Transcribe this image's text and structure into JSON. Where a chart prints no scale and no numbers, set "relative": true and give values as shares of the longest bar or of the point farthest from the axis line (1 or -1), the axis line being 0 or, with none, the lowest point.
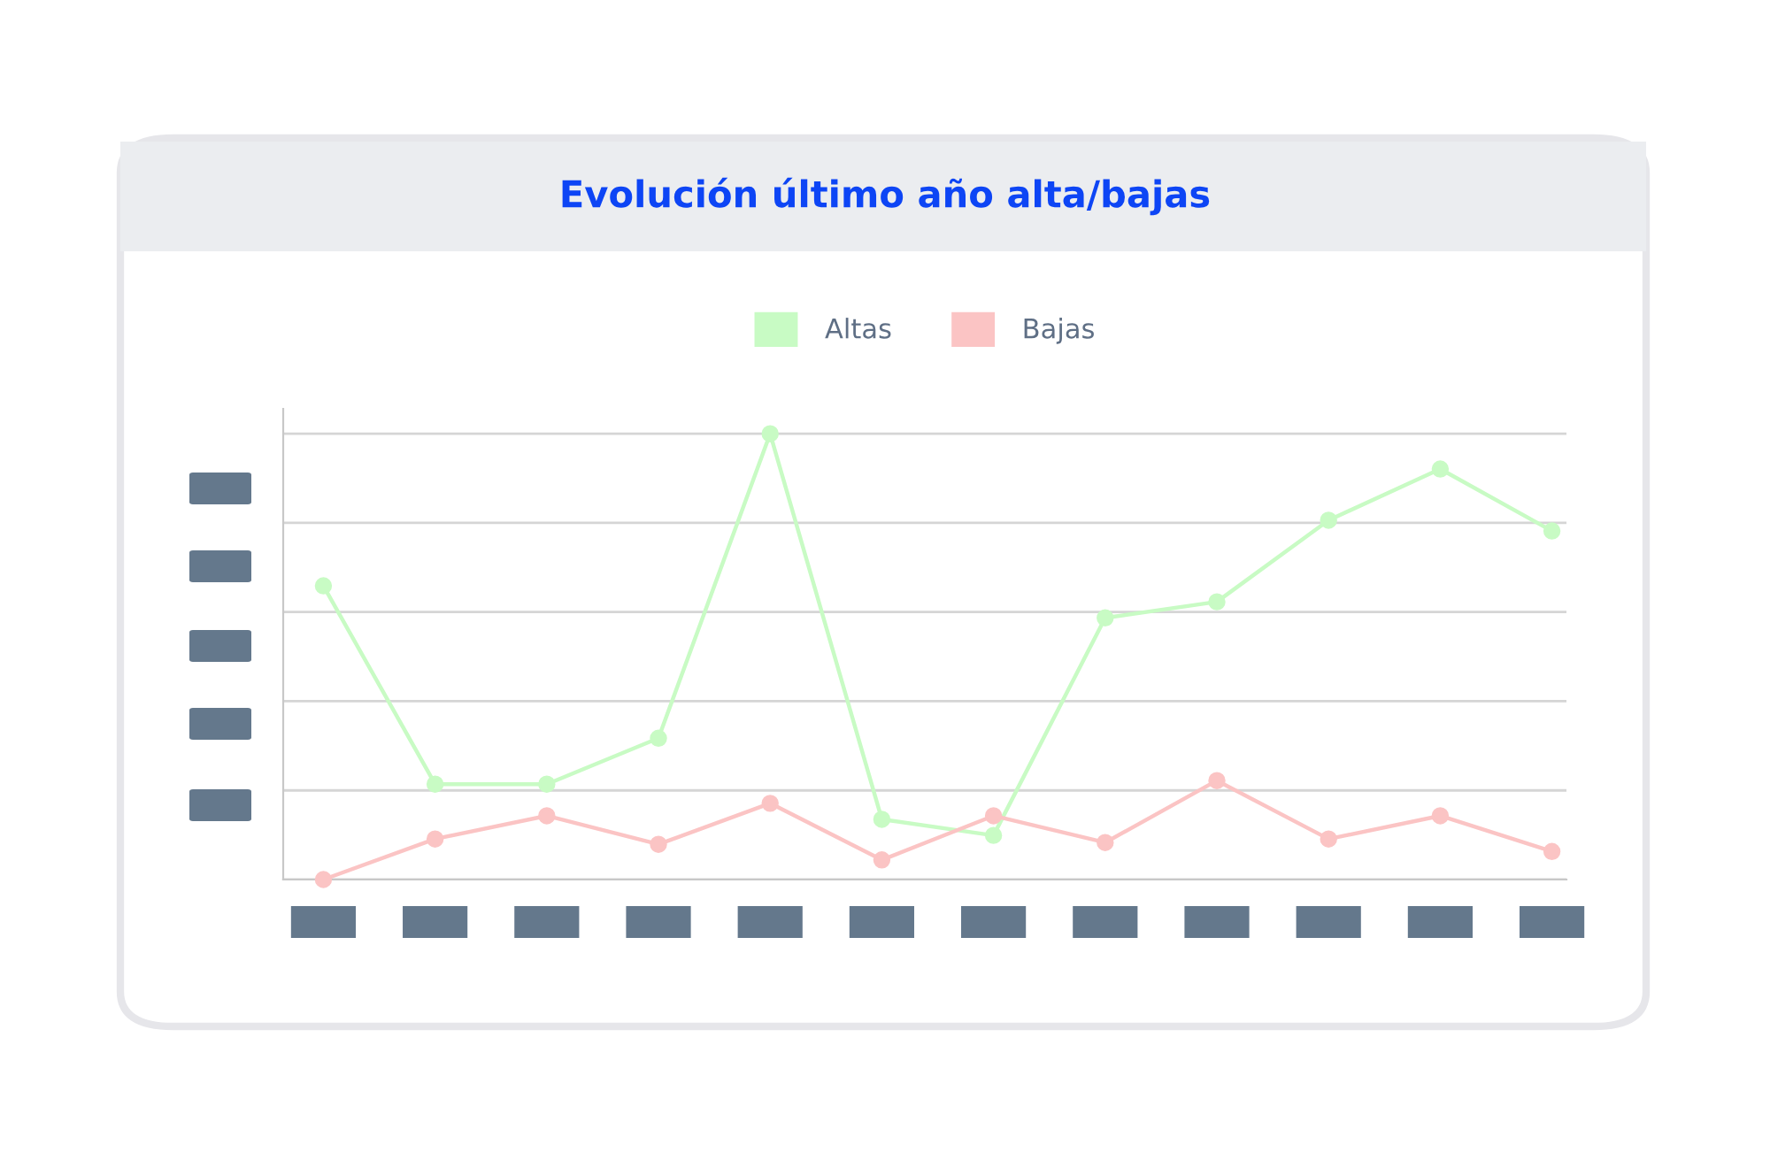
{
  "chart_data": {
    "type": "line",
    "title": "Evolución último año alta/bajas",
    "relative": true,
    "categories": [
      null,
      null,
      null,
      null,
      null,
      null,
      null,
      null,
      null,
      null,
      null,
      null
    ],
    "series": [
      {
        "name": "Altas",
        "color": "#c8fbc4",
        "values": [
          0.659,
          0.214,
          0.214,
          0.317,
          1,
          0.135,
          0.099,
          0.587,
          0.623,
          0.806,
          0.921,
          0.782
        ]
      },
      {
        "name": "Bajas",
        "color": "#fbc4c4",
        "values": [
          0,
          0.091,
          0.143,
          0.079,
          0.171,
          0.044,
          0.143,
          0.083,
          0.222,
          0.091,
          0.143,
          0.063
        ]
      }
    ],
    "legend": "top",
    "marker": "circle",
    "line_style": "solid",
    "grid": "y",
    "tick_labels": false
  }
}
